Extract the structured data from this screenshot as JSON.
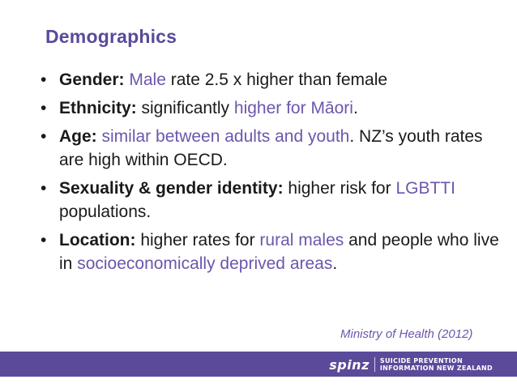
{
  "slide": {
    "title": "Demographics",
    "bullets": [
      {
        "segments": [
          {
            "text": "Gender:",
            "style": "bold"
          },
          {
            "text": " ",
            "style": "plain"
          },
          {
            "text": "Male",
            "style": "hl"
          },
          {
            "text": " rate 2.5 x higher than female",
            "style": "plain"
          }
        ]
      },
      {
        "segments": [
          {
            "text": "Ethnicity:",
            "style": "bold"
          },
          {
            "text": " significantly ",
            "style": "plain"
          },
          {
            "text": "higher for Māori",
            "style": "hl"
          },
          {
            "text": ".",
            "style": "plain"
          }
        ]
      },
      {
        "segments": [
          {
            "text": "Age:",
            "style": "bold"
          },
          {
            "text": " ",
            "style": "plain"
          },
          {
            "text": "similar between adults and youth",
            "style": "hl"
          },
          {
            "text": ". NZ’s youth rates are high within OECD.",
            "style": "plain"
          }
        ]
      },
      {
        "segments": [
          {
            "text": "Sexuality & gender identity:",
            "style": "bold"
          },
          {
            "text": " higher risk for ",
            "style": "plain"
          },
          {
            "text": "LGBTTI",
            "style": "hl"
          },
          {
            "text": " populations.",
            "style": "plain"
          }
        ]
      },
      {
        "segments": [
          {
            "text": "Location:",
            "style": "bold"
          },
          {
            "text": " higher rates for ",
            "style": "plain"
          },
          {
            "text": "rural males",
            "style": "hl"
          },
          {
            "text": " and people who live in ",
            "style": "plain"
          },
          {
            "text": "socioeconomically deprived areas",
            "style": "hl"
          },
          {
            "text": ".",
            "style": "plain"
          }
        ]
      }
    ],
    "bullet_glyph": "•",
    "citation": "Ministry of Health (2012)"
  },
  "footer": {
    "logo_word": "spinz",
    "logo_line1": "SUICIDE PREVENTION",
    "logo_line2": "INFORMATION NEW ZEALAND"
  },
  "colors": {
    "title": "#5a4a9a",
    "highlight": "#6d56ad",
    "footer_bar": "#5b4a99"
  }
}
